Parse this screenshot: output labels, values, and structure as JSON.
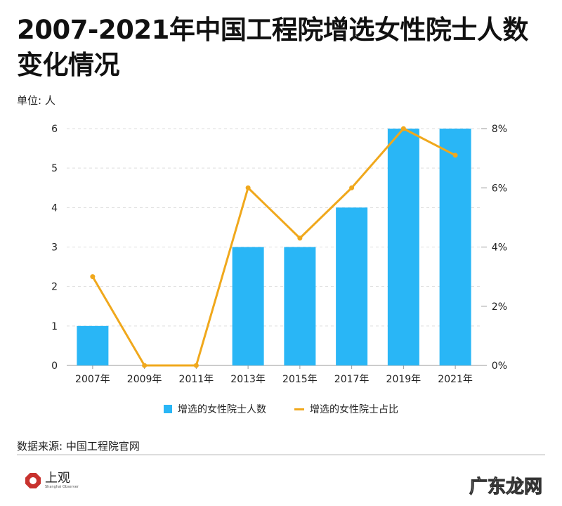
{
  "title": "2007-2021年中国工程院增选女性院士人数变化情况",
  "unit_label": "单位: 人",
  "source": "数据来源: 中国工程院官网",
  "logo": {
    "text": "上观",
    "sub": "Shanghai Observer"
  },
  "watermark": "广东龙网",
  "chart_data": {
    "type": "bar+line",
    "categories": [
      "2007年",
      "2009年",
      "2011年",
      "2013年",
      "2015年",
      "2017年",
      "2019年",
      "2021年"
    ],
    "series": [
      {
        "name": "增选的女性院士人数",
        "type": "bar",
        "axis": "left",
        "color": "#29b6f6",
        "values": [
          1,
          0,
          0,
          3,
          3,
          4,
          6,
          6
        ]
      },
      {
        "name": "增选的女性院士占比",
        "type": "line",
        "axis": "right",
        "color": "#f0a81c",
        "values": [
          3.0,
          0,
          0,
          6.0,
          4.3,
          6.0,
          8.0,
          7.1
        ]
      }
    ],
    "y_left": {
      "range": [
        0,
        6
      ],
      "ticks": [
        "0",
        "1",
        "2",
        "3",
        "4",
        "5",
        "6"
      ]
    },
    "y_right": {
      "range": [
        0,
        8
      ],
      "ticks": [
        "0%",
        "2%",
        "4%",
        "6%",
        "8%"
      ]
    },
    "grid": true,
    "legend_position": "bottom"
  }
}
